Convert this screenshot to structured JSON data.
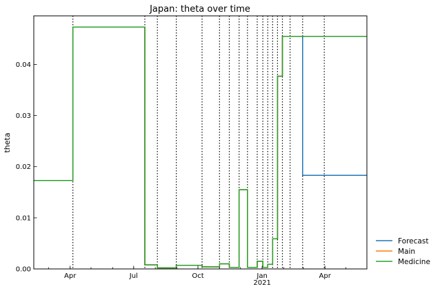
{
  "chart_data": {
    "type": "line",
    "title": "Japan: theta over time",
    "xlabel": "",
    "ylabel": "theta",
    "x_range": [
      "2020-02-09",
      "2021-05-31"
    ],
    "ylim": [
      0,
      0.0495
    ],
    "x_ticks": [
      {
        "date": "2020-04-01",
        "label": "Apr"
      },
      {
        "date": "2020-07-01",
        "label": "Jul"
      },
      {
        "date": "2020-10-01",
        "label": "Oct"
      },
      {
        "date": "2021-01-01",
        "label": "Jan",
        "sublabel": "2021"
      },
      {
        "date": "2021-04-01",
        "label": "Apr"
      }
    ],
    "y_ticks": [
      0.0,
      0.01,
      0.02,
      0.03,
      0.04
    ],
    "y_tick_labels": [
      "0.00",
      "0.01",
      "0.02",
      "0.03",
      "0.04"
    ],
    "vertical_lines": [
      "2020-04-05",
      "2020-07-17",
      "2020-08-04",
      "2020-08-31",
      "2020-10-07",
      "2020-11-01",
      "2020-11-15",
      "2020-11-29",
      "2020-12-11",
      "2020-12-25",
      "2021-01-02",
      "2021-01-09",
      "2021-01-16",
      "2021-01-23",
      "2021-01-30",
      "2021-02-10",
      "2021-02-28",
      "2021-03-31"
    ],
    "grid": false,
    "legend_position": "bottom-right-outside",
    "series": [
      {
        "name": "Forecast",
        "color": "#1f77b4",
        "step": true,
        "x": [
          "2020-02-09",
          "2020-04-05",
          "2020-07-17",
          "2020-08-04",
          "2020-08-31",
          "2020-10-07",
          "2020-11-01",
          "2020-11-15",
          "2020-11-29",
          "2020-12-11",
          "2020-12-25",
          "2021-01-02",
          "2021-01-09",
          "2021-01-16",
          "2021-01-23",
          "2021-01-30",
          "2021-02-10",
          "2021-02-28",
          "2021-05-31"
        ],
        "y": [
          0.0173,
          0.0473,
          0.0008,
          0.0002,
          0.0007,
          0.0004,
          0.001,
          0.0003,
          0.0155,
          0.0003,
          0.0015,
          0.0003,
          0.0009,
          0.0059,
          0.0377,
          0.0455,
          0.0455,
          0.0183,
          0.0183
        ]
      },
      {
        "name": "Main",
        "color": "#ff7f0e",
        "step": true,
        "x": [
          "2020-02-09",
          "2020-04-05",
          "2020-07-17",
          "2020-08-04",
          "2020-08-31",
          "2020-10-07",
          "2020-11-01",
          "2020-11-15",
          "2020-11-29",
          "2020-12-11",
          "2020-12-25",
          "2021-01-02",
          "2021-01-09",
          "2021-01-16",
          "2021-01-23",
          "2021-01-30",
          "2021-02-10",
          "2021-05-31"
        ],
        "y": [
          0.0173,
          0.0473,
          0.0008,
          0.0002,
          0.0007,
          0.0004,
          0.001,
          0.0003,
          0.0155,
          0.0003,
          0.0015,
          0.0003,
          0.0009,
          0.0059,
          0.0377,
          0.0455,
          0.0455,
          0.0455
        ]
      },
      {
        "name": "Medicine",
        "color": "#2ca02c",
        "step": true,
        "x": [
          "2020-02-09",
          "2020-04-05",
          "2020-07-17",
          "2020-08-04",
          "2020-08-31",
          "2020-10-07",
          "2020-11-01",
          "2020-11-15",
          "2020-11-29",
          "2020-12-11",
          "2020-12-25",
          "2021-01-02",
          "2021-01-09",
          "2021-01-16",
          "2021-01-23",
          "2021-01-30",
          "2021-02-10",
          "2021-05-31"
        ],
        "y": [
          0.0173,
          0.0473,
          0.0008,
          0.0002,
          0.0007,
          0.0004,
          0.001,
          0.0003,
          0.0155,
          0.0003,
          0.0015,
          0.0003,
          0.0009,
          0.0059,
          0.0377,
          0.0455,
          0.0455,
          0.0455
        ]
      }
    ]
  }
}
